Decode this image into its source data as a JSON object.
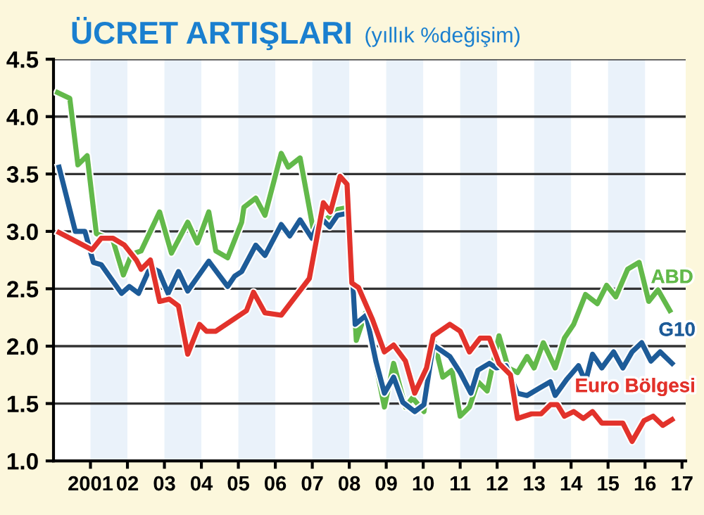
{
  "chart_data": {
    "type": "line",
    "title": "ÜCRET ARTIŞLARI",
    "subtitle": "(yıllık %değişim)",
    "xlim": [
      2000,
      2017.1
    ],
    "ylim": [
      1.0,
      4.5
    ],
    "xticks": [
      {
        "value": 2001,
        "label": "2001"
      },
      {
        "value": 2002,
        "label": "02"
      },
      {
        "value": 2003,
        "label": "03"
      },
      {
        "value": 2004,
        "label": "04"
      },
      {
        "value": 2005,
        "label": "05"
      },
      {
        "value": 2006,
        "label": "06"
      },
      {
        "value": 2007,
        "label": "07"
      },
      {
        "value": 2008,
        "label": "08"
      },
      {
        "value": 2009,
        "label": "09"
      },
      {
        "value": 2010,
        "label": "10"
      },
      {
        "value": 2011,
        "label": "11"
      },
      {
        "value": 2012,
        "label": "12"
      },
      {
        "value": 2013,
        "label": "13"
      },
      {
        "value": 2014,
        "label": "14"
      },
      {
        "value": 2015,
        "label": "15"
      },
      {
        "value": 2016,
        "label": "16"
      },
      {
        "value": 2017,
        "label": "17"
      }
    ],
    "yticks": [
      {
        "value": 1.0,
        "label": "1.0"
      },
      {
        "value": 1.5,
        "label": "1.5"
      },
      {
        "value": 2.0,
        "label": "2.0"
      },
      {
        "value": 2.5,
        "label": "2.5"
      },
      {
        "value": 3.0,
        "label": "3.0"
      },
      {
        "value": 3.5,
        "label": "3.5"
      },
      {
        "value": 4.0,
        "label": "4.0"
      },
      {
        "value": 4.5,
        "label": "4.5"
      }
    ],
    "grid": "y",
    "legend": false,
    "marker": "none",
    "line_style": "solid",
    "bands": [
      {
        "axis": "x",
        "from": 2001,
        "to": 2002,
        "color": "#eaf2fa"
      },
      {
        "axis": "x",
        "from": 2003,
        "to": 2004,
        "color": "#eaf2fa"
      },
      {
        "axis": "x",
        "from": 2005,
        "to": 2006,
        "color": "#eaf2fa"
      },
      {
        "axis": "x",
        "from": 2007,
        "to": 2008,
        "color": "#eaf2fa"
      },
      {
        "axis": "x",
        "from": 2009,
        "to": 2010,
        "color": "#eaf2fa"
      },
      {
        "axis": "x",
        "from": 2011,
        "to": 2012,
        "color": "#eaf2fa"
      },
      {
        "axis": "x",
        "from": 2013,
        "to": 2014,
        "color": "#eaf2fa"
      },
      {
        "axis": "x",
        "from": 2015,
        "to": 2016,
        "color": "#eaf2fa"
      }
    ],
    "series": [
      {
        "name": "ABD",
        "color": "#62b94a",
        "x": [
          2000.11,
          2000.44,
          2000.66,
          2000.91,
          2001.16,
          2001.61,
          2001.89,
          2002.11,
          2002.37,
          2002.87,
          2003.19,
          2003.63,
          2003.89,
          2004.2,
          2004.39,
          2004.71,
          2005.09,
          2005.15,
          2005.47,
          2005.72,
          2006.16,
          2006.35,
          2006.67,
          2007.03,
          2007.68,
          2007.99,
          2008.19,
          2008.44,
          2008.95,
          2009.2,
          2009.52,
          2009.71,
          2010.02,
          2010.27,
          2010.53,
          2010.78,
          2011.0,
          2011.25,
          2011.48,
          2011.73,
          2012.05,
          2012.3,
          2012.55,
          2012.81,
          2013.0,
          2013.25,
          2013.57,
          2013.82,
          2014.07,
          2014.39,
          2014.71,
          2014.96,
          2015.21,
          2015.53,
          2015.84,
          2016.1,
          2016.35,
          2016.67
        ],
        "values": [
          4.21,
          4.16,
          3.58,
          3.66,
          2.98,
          2.92,
          2.62,
          2.8,
          2.83,
          3.17,
          2.81,
          3.08,
          2.9,
          3.17,
          2.83,
          2.77,
          3.08,
          3.21,
          3.29,
          3.14,
          3.68,
          3.56,
          3.64,
          3.01,
          3.19,
          3.21,
          2.05,
          2.29,
          1.47,
          1.85,
          1.47,
          1.55,
          1.43,
          2.07,
          1.73,
          1.79,
          1.39,
          1.47,
          1.69,
          1.61,
          2.09,
          1.81,
          1.77,
          1.91,
          1.81,
          2.03,
          1.81,
          2.07,
          2.19,
          2.45,
          2.37,
          2.53,
          2.43,
          2.67,
          2.73,
          2.39,
          2.49,
          2.31
        ]
      },
      {
        "name": "G10",
        "color": "#1d5b98",
        "x": [
          2000.15,
          2000.59,
          2000.85,
          2001.08,
          2001.29,
          2001.84,
          2002.05,
          2002.3,
          2002.62,
          2002.85,
          2003.1,
          2003.38,
          2003.63,
          2004.2,
          2004.71,
          2004.9,
          2005.09,
          2005.47,
          2005.72,
          2006.16,
          2006.39,
          2006.67,
          2006.99,
          2007.22,
          2007.47,
          2007.68,
          2007.99,
          2008.16,
          2008.46,
          2008.72,
          2008.95,
          2009.2,
          2009.45,
          2009.77,
          2010.02,
          2010.27,
          2010.72,
          2011.0,
          2011.29,
          2011.48,
          2011.79,
          2011.98,
          2012.24,
          2012.55,
          2012.81,
          2013.12,
          2013.44,
          2013.57,
          2013.88,
          2014.2,
          2014.39,
          2014.58,
          2014.83,
          2015.15,
          2015.4,
          2015.65,
          2015.91,
          2016.16,
          2016.41,
          2016.73
        ],
        "values": [
          3.56,
          3.0,
          3.0,
          2.73,
          2.71,
          2.46,
          2.52,
          2.46,
          2.69,
          2.65,
          2.46,
          2.65,
          2.48,
          2.74,
          2.52,
          2.61,
          2.65,
          2.88,
          2.79,
          3.06,
          2.96,
          3.1,
          2.94,
          3.12,
          3.04,
          3.14,
          3.16,
          2.19,
          2.27,
          1.87,
          1.59,
          1.73,
          1.51,
          1.43,
          1.49,
          2.01,
          1.91,
          1.77,
          1.59,
          1.79,
          1.85,
          1.81,
          1.83,
          1.59,
          1.57,
          1.63,
          1.69,
          1.57,
          1.71,
          1.83,
          1.69,
          1.93,
          1.81,
          1.95,
          1.81,
          1.95,
          2.03,
          1.87,
          1.95,
          1.85
        ]
      },
      {
        "name": "Euro Bölgesi",
        "color": "#e2322b",
        "x": [
          2000.15,
          2001.04,
          2001.29,
          2001.61,
          2001.92,
          2002.24,
          2002.37,
          2002.62,
          2002.87,
          2003.13,
          2003.38,
          2003.63,
          2003.95,
          2004.14,
          2004.39,
          2005.22,
          2005.41,
          2005.72,
          2006.16,
          2006.92,
          2007.3,
          2007.49,
          2007.75,
          2007.94,
          2008.07,
          2008.25,
          2008.63,
          2008.95,
          2009.2,
          2009.52,
          2009.77,
          2010.09,
          2010.27,
          2010.72,
          2011.0,
          2011.25,
          2011.54,
          2011.79,
          2012.05,
          2012.36,
          2012.55,
          2012.93,
          2013.19,
          2013.44,
          2013.63,
          2013.82,
          2014.07,
          2014.33,
          2014.58,
          2014.83,
          2015.4,
          2015.65,
          2015.97,
          2016.22,
          2016.48,
          2016.73
        ],
        "values": [
          2.99,
          2.84,
          2.94,
          2.94,
          2.88,
          2.75,
          2.67,
          2.75,
          2.39,
          2.41,
          2.35,
          1.93,
          2.19,
          2.13,
          2.13,
          2.31,
          2.47,
          2.29,
          2.27,
          2.59,
          3.25,
          3.17,
          3.48,
          3.41,
          2.55,
          2.51,
          2.23,
          1.95,
          2.01,
          1.87,
          1.59,
          1.81,
          2.09,
          2.19,
          2.13,
          1.95,
          2.07,
          2.07,
          1.85,
          1.75,
          1.37,
          1.41,
          1.41,
          1.49,
          1.49,
          1.39,
          1.43,
          1.37,
          1.43,
          1.33,
          1.33,
          1.17,
          1.35,
          1.39,
          1.31,
          1.36
        ]
      }
    ]
  }
}
